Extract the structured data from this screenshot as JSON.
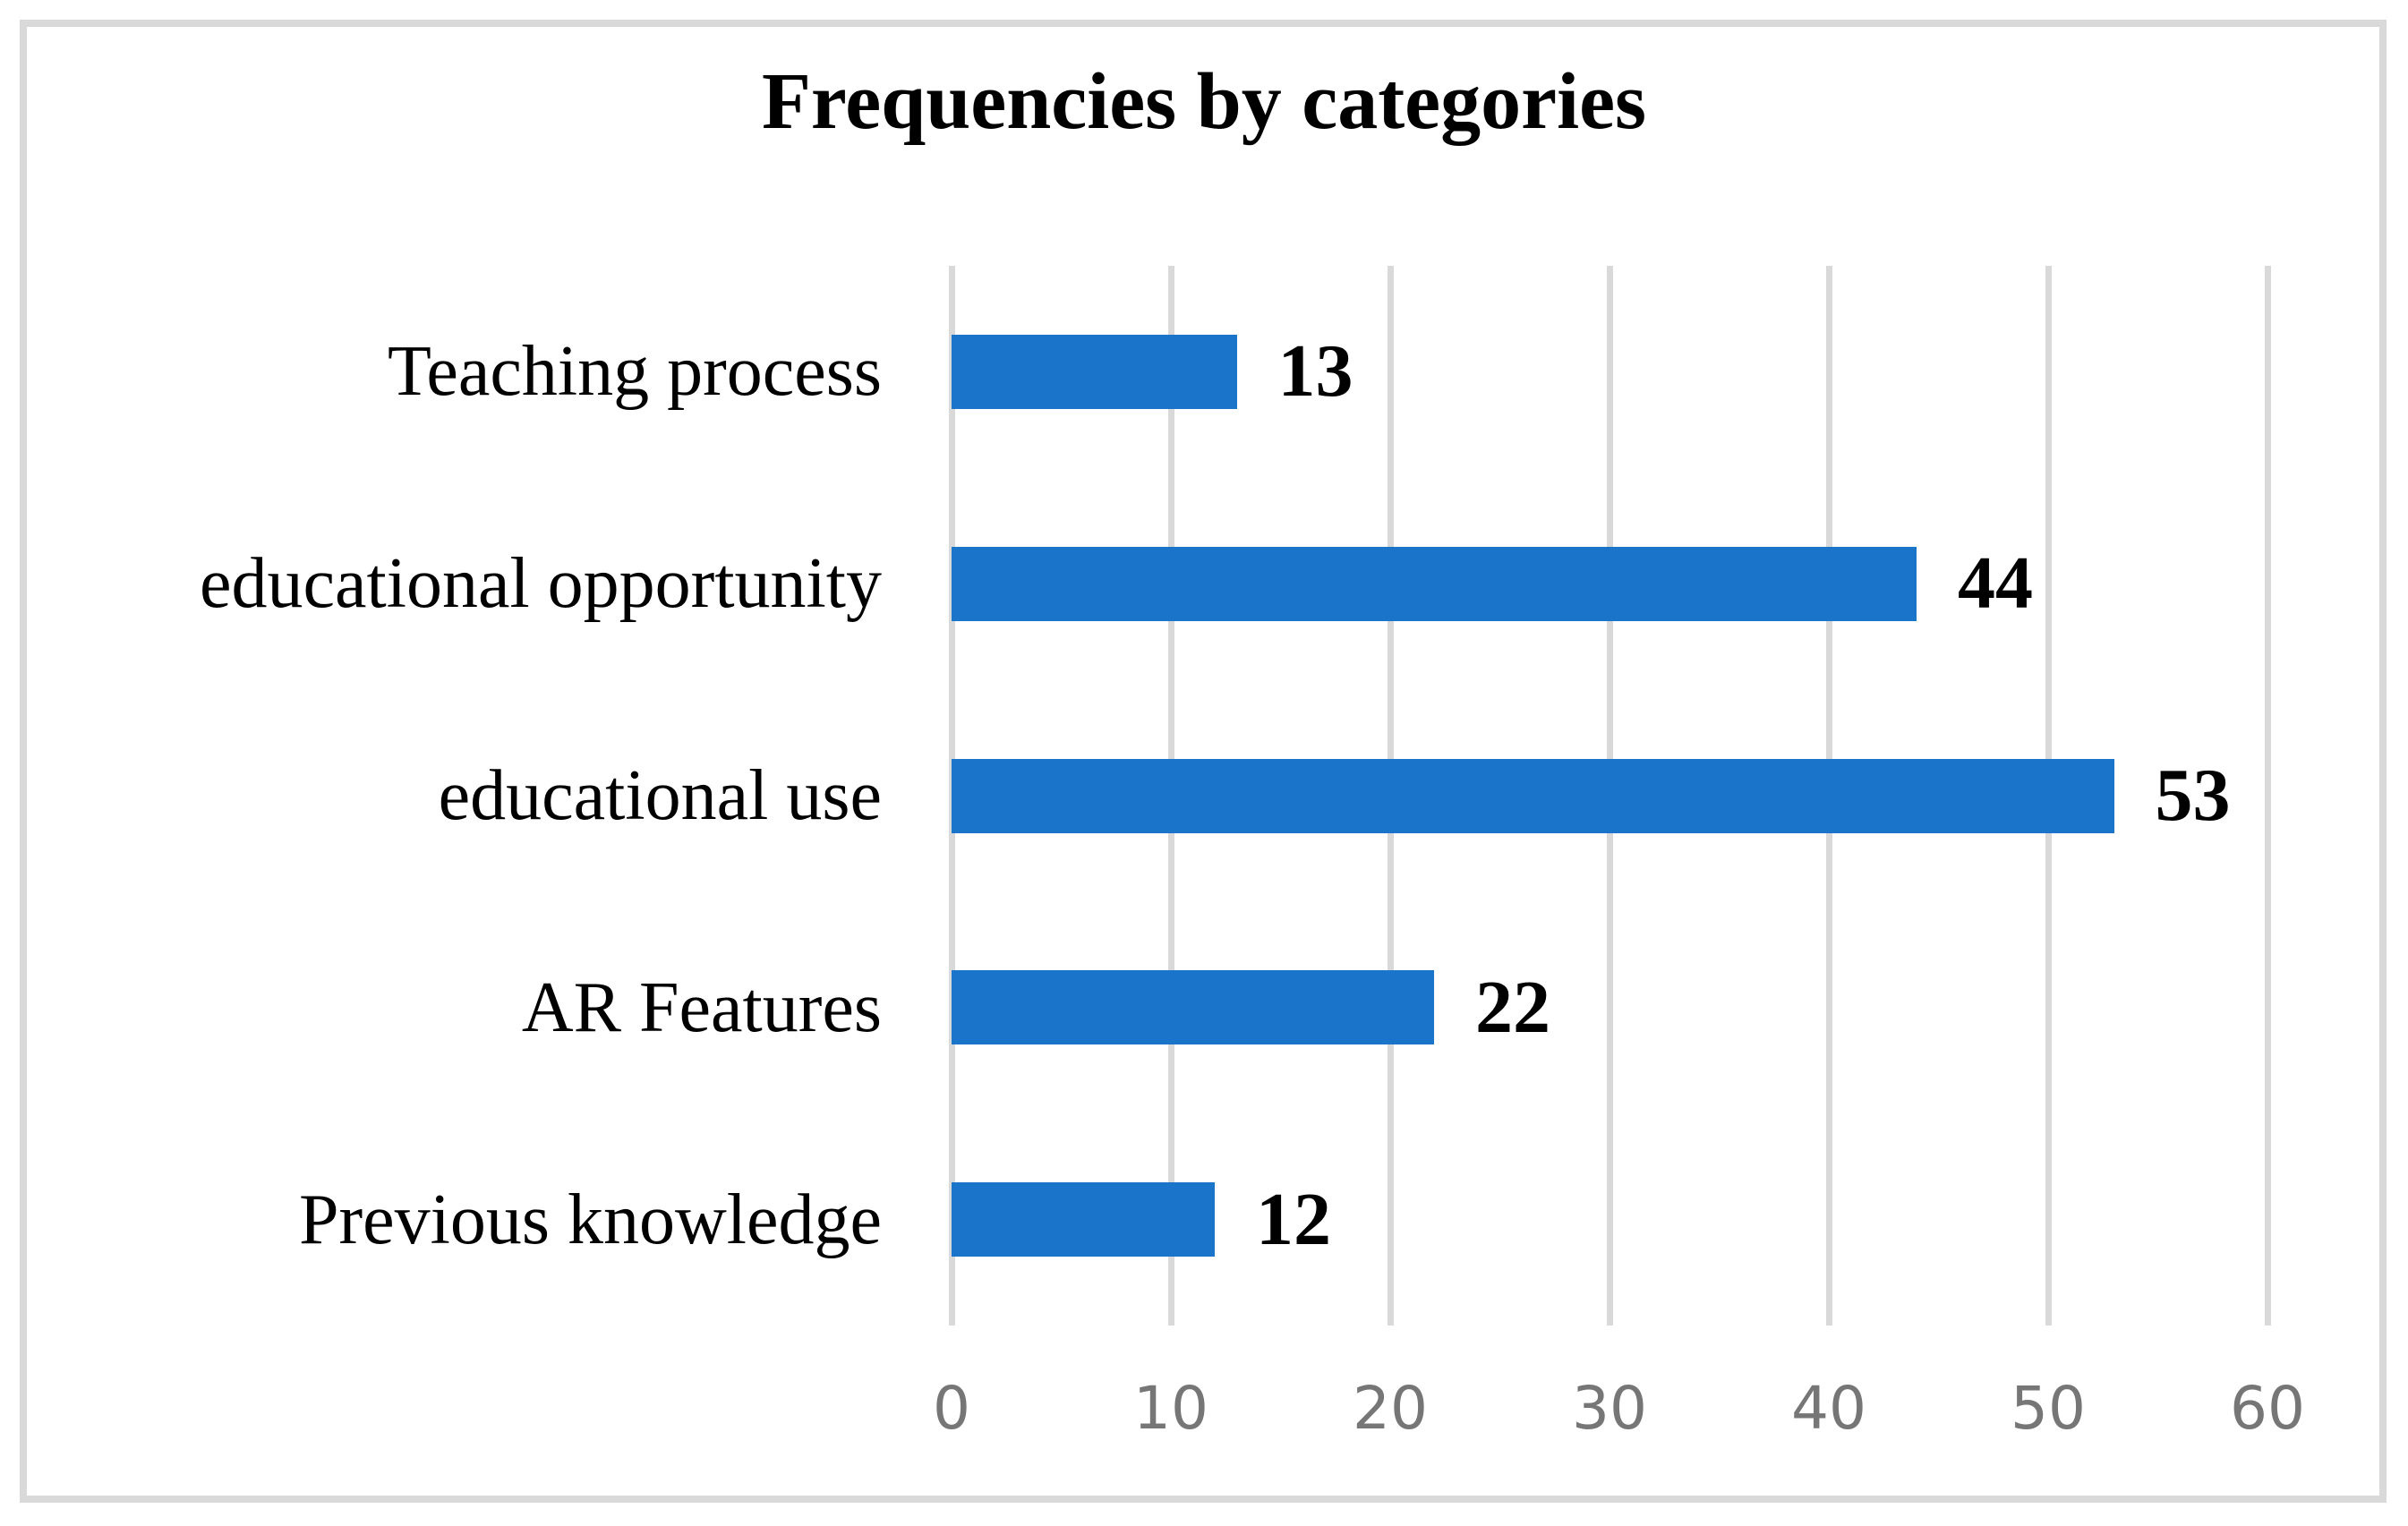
{
  "window": {
    "background_color": "#ffffff",
    "border_color": "#d9d9d9"
  },
  "chart_data": {
    "type": "bar",
    "orientation": "horizontal",
    "title": "Frequencies by categories",
    "categories": [
      "Teaching process",
      "educational opportunity",
      "educational use",
      "AR Features",
      "Previous knowledge"
    ],
    "values": [
      13,
      44,
      53,
      22,
      12
    ],
    "xticks": [
      0,
      10,
      20,
      30,
      40,
      50,
      60
    ],
    "xlim": [
      0,
      60
    ],
    "xlabel": "",
    "ylabel": "",
    "grid": true,
    "gridline_color": "#d9d9d9",
    "bar_color": "#1a75ca",
    "value_label_color": "#000000",
    "category_label_color": "#000000",
    "tick_label_color": "#767676",
    "legend": false
  }
}
